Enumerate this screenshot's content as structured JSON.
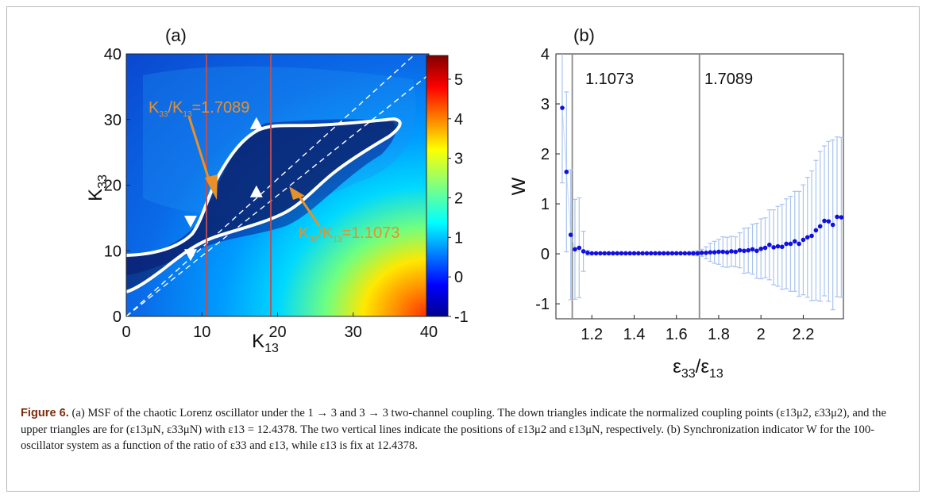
{
  "panel_a": {
    "label": "(a)",
    "x_ticks": [
      "0",
      "10",
      "20",
      "30",
      "40"
    ],
    "y_ticks": [
      "0",
      "10",
      "20",
      "30",
      "40"
    ],
    "colorbar_ticks": [
      "5",
      "4",
      "3",
      "2",
      "1",
      "0",
      "-1"
    ],
    "colorbar_range": [
      -1,
      5.6
    ],
    "annotation_upper": "K33/K13=1.7089",
    "annotation_lower": "K33/K13=1.1073",
    "annotation_color": "#e8902a",
    "vertical_line_color": "#c0504d"
  },
  "panel_b": {
    "label": "(b)",
    "x_ticks": [
      "1.2",
      "1.4",
      "1.6",
      "1.8",
      "2",
      "2.2"
    ],
    "y_ticks": [
      "4",
      "3",
      "2",
      "1",
      "0",
      "-1"
    ],
    "line_label_1": "1.1073",
    "line_label_2": "1.7089",
    "ylabel": "W",
    "point_color": "#1010e0",
    "errorbar_color": "#a9c4ee"
  },
  "chart_data": [
    {
      "type": "heatmap",
      "title": "(a)",
      "xlabel": "K13",
      "ylabel": "K33",
      "xlim": [
        0,
        40
      ],
      "ylim": [
        0,
        40
      ],
      "colorbar_lim": [
        -1,
        5.6
      ],
      "vertical_lines_x": [
        8.5,
        17.2
      ],
      "guide_lines_slope": [
        1.7089,
        1.1073
      ],
      "down_triangles": [
        [
          8.5,
          14.5
        ],
        [
          8.5,
          9.4
        ]
      ],
      "up_triangles": [
        [
          17.2,
          29.4
        ],
        [
          17.2,
          19.0
        ]
      ],
      "annotations": [
        "K33/K13=1.7089",
        "K33/K13=1.1073"
      ]
    },
    {
      "type": "scatter",
      "title": "(b)",
      "xlabel": "ε33/ε13",
      "ylabel": "W",
      "xlim": [
        1.03,
        2.39
      ],
      "ylim": [
        -1.3,
        4
      ],
      "vertical_lines_x": [
        1.1073,
        1.7089
      ],
      "x": [
        1.06,
        1.08,
        1.1,
        1.12,
        1.14,
        1.16,
        1.18,
        1.2,
        1.22,
        1.24,
        1.26,
        1.28,
        1.3,
        1.32,
        1.34,
        1.36,
        1.38,
        1.4,
        1.42,
        1.44,
        1.46,
        1.48,
        1.5,
        1.52,
        1.54,
        1.56,
        1.58,
        1.6,
        1.62,
        1.64,
        1.66,
        1.68,
        1.7,
        1.72,
        1.74,
        1.76,
        1.78,
        1.8,
        1.82,
        1.84,
        1.86,
        1.88,
        1.9,
        1.92,
        1.94,
        1.96,
        1.98,
        2.0,
        2.02,
        2.04,
        2.06,
        2.08,
        2.1,
        2.12,
        2.14,
        2.16,
        2.18,
        2.2,
        2.22,
        2.24,
        2.26,
        2.28,
        2.3,
        2.32,
        2.34,
        2.36,
        2.38
      ],
      "y": [
        2.92,
        1.64,
        0.38,
        0.09,
        0.12,
        0.05,
        0.02,
        0.01,
        0.01,
        0.01,
        0.01,
        0.01,
        0.01,
        0.01,
        0.01,
        0.01,
        0.01,
        0.01,
        0.01,
        0.01,
        0.01,
        0.01,
        0.01,
        0.01,
        0.01,
        0.01,
        0.01,
        0.01,
        0.01,
        0.01,
        0.01,
        0.01,
        0.01,
        0.02,
        0.02,
        0.03,
        0.03,
        0.04,
        0.04,
        0.03,
        0.05,
        0.04,
        0.07,
        0.06,
        0.07,
        0.09,
        0.06,
        0.1,
        0.12,
        0.18,
        0.13,
        0.15,
        0.14,
        0.2,
        0.2,
        0.25,
        0.2,
        0.28,
        0.33,
        0.36,
        0.47,
        0.55,
        0.66,
        0.65,
        0.58,
        0.74,
        0.73
      ],
      "err": [
        1.5,
        1.6,
        1.3,
        1.0,
        1.0,
        0.4,
        0.05,
        0.02,
        0.02,
        0.02,
        0.02,
        0.02,
        0.02,
        0.02,
        0.02,
        0.02,
        0.02,
        0.02,
        0.02,
        0.02,
        0.02,
        0.02,
        0.02,
        0.02,
        0.02,
        0.02,
        0.02,
        0.02,
        0.02,
        0.02,
        0.02,
        0.04,
        0.05,
        0.07,
        0.12,
        0.18,
        0.22,
        0.25,
        0.3,
        0.3,
        0.3,
        0.3,
        0.35,
        0.45,
        0.45,
        0.5,
        0.55,
        0.6,
        0.6,
        0.7,
        0.75,
        0.8,
        0.85,
        0.9,
        0.95,
        1.0,
        1.05,
        1.1,
        1.2,
        1.3,
        1.4,
        1.5,
        1.5,
        1.6,
        1.7,
        1.6,
        1.6
      ]
    }
  ],
  "caption": {
    "figure_label": "Figure 6.",
    "text": "(a) MSF of the chaotic Lorenz oscillator under the 1 → 3 and 3 → 3 two-channel coupling. The down triangles indicate the normalized coupling points (ε13μ2, ε33μ2), and the upper triangles are for (ε13μN, ε33μN) with ε13 = 12.4378. The two vertical lines indicate the positions of ε13μ2 and ε13μN, respectively. (b) Synchronization indicator W for the 100-oscillator system as a function of the ratio of ε33 and ε13, while ε13 is fix at 12.4378."
  }
}
